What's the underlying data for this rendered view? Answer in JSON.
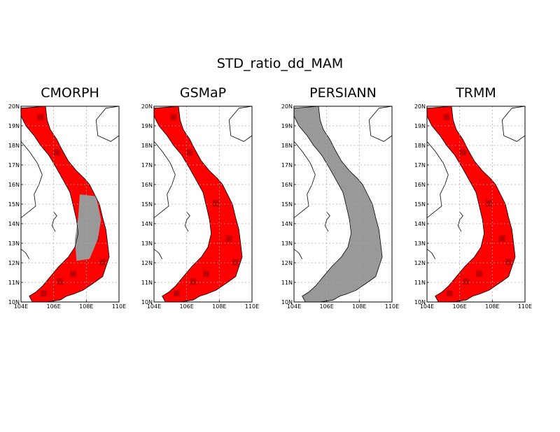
{
  "title": "STD_ratio_dd_MAM",
  "panels": [
    {
      "name": "CMORPH",
      "style": "red"
    },
    {
      "name": "GSMaP",
      "style": "red"
    },
    {
      "name": "PERSIANN",
      "style": "gray"
    },
    {
      "name": "TRMM",
      "style": "red"
    }
  ],
  "axes": {
    "lat_labels": [
      "20N",
      "19N",
      "18N",
      "17N",
      "16N",
      "15N",
      "14N",
      "13N",
      "12N",
      "11N",
      "10N"
    ],
    "lon_labels": [
      "104E",
      "106E",
      "108E",
      "110E"
    ]
  },
  "colors": {
    "red": "#ff0000",
    "dark_red": "#c40000",
    "mid_red": "#e41010",
    "gray": "#999999",
    "grid": "#aaaaaa"
  }
}
